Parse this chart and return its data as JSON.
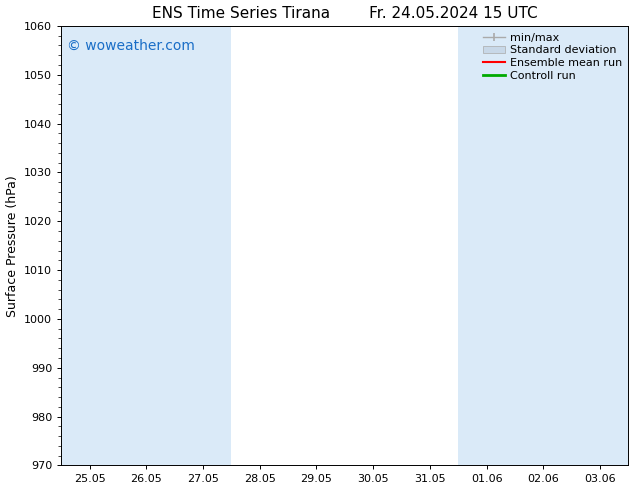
{
  "title_left": "ENS Time Series Tirana",
  "title_right": "Fr. 24.05.2024 15 UTC",
  "ylabel": "Surface Pressure (hPa)",
  "ylim": [
    970,
    1060
  ],
  "yticks": [
    970,
    980,
    990,
    1000,
    1010,
    1020,
    1030,
    1040,
    1050,
    1060
  ],
  "xtick_labels": [
    "25.05",
    "26.05",
    "27.05",
    "28.05",
    "29.05",
    "30.05",
    "31.05",
    "01.06",
    "02.06",
    "03.06"
  ],
  "watermark": "© woweather.com",
  "watermark_color": "#1a6ec7",
  "bg_color": "#ffffff",
  "plot_bg_color": "#ffffff",
  "shaded_band_color": "#daeaf8",
  "shaded_columns_x": [
    0,
    1,
    2,
    7,
    8,
    9
  ],
  "legend_labels": [
    "min/max",
    "Standard deviation",
    "Ensemble mean run",
    "Controll run"
  ],
  "minmax_color": "#aaaaaa",
  "std_color": "#c8d8e8",
  "std_edge_color": "#aaaaaa",
  "ens_color": "#ff0000",
  "ctrl_color": "#00aa00",
  "title_fontsize": 11,
  "ylabel_fontsize": 9,
  "tick_fontsize": 8,
  "watermark_fontsize": 10,
  "legend_fontsize": 8
}
